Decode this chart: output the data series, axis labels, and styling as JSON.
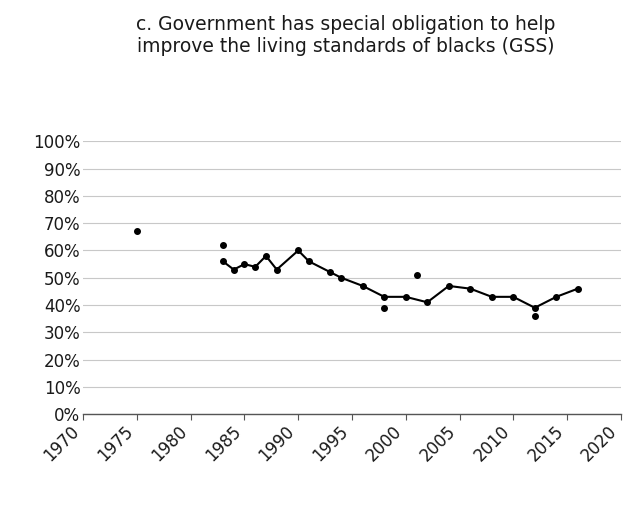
{
  "title_line1": "c. Government has special obligation to help",
  "title_line2": "improve the living standards of blacks (GSS)",
  "xlim": [
    1970,
    2020
  ],
  "ylim": [
    0,
    100
  ],
  "xticks": [
    1970,
    1975,
    1980,
    1985,
    1990,
    1995,
    2000,
    2005,
    2010,
    2015,
    2020
  ],
  "yticks": [
    0,
    10,
    20,
    30,
    40,
    50,
    60,
    70,
    80,
    90,
    100
  ],
  "line_data": [
    [
      1983,
      56
    ],
    [
      1984,
      53
    ],
    [
      1985,
      55
    ],
    [
      1986,
      54
    ],
    [
      1987,
      58
    ],
    [
      1988,
      53
    ],
    [
      1990,
      60
    ],
    [
      1991,
      56
    ],
    [
      1993,
      52
    ],
    [
      1994,
      50
    ],
    [
      1996,
      47
    ],
    [
      1998,
      43
    ],
    [
      2000,
      43
    ],
    [
      2002,
      41
    ],
    [
      2004,
      47
    ],
    [
      2006,
      46
    ],
    [
      2008,
      43
    ],
    [
      2010,
      43
    ],
    [
      2012,
      39
    ],
    [
      2014,
      43
    ],
    [
      2016,
      46
    ]
  ],
  "dot_only_data": [
    [
      1975,
      67
    ],
    [
      1983,
      62
    ],
    [
      1998,
      39
    ],
    [
      2001,
      51
    ],
    [
      2012,
      36
    ]
  ],
  "line_color": "#000000",
  "dot_color": "#000000",
  "bg_color": "#ffffff",
  "grid_color": "#c8c8c8",
  "font_color": "#1a1a1a",
  "title_fontsize": 13.5,
  "tick_fontsize": 12
}
